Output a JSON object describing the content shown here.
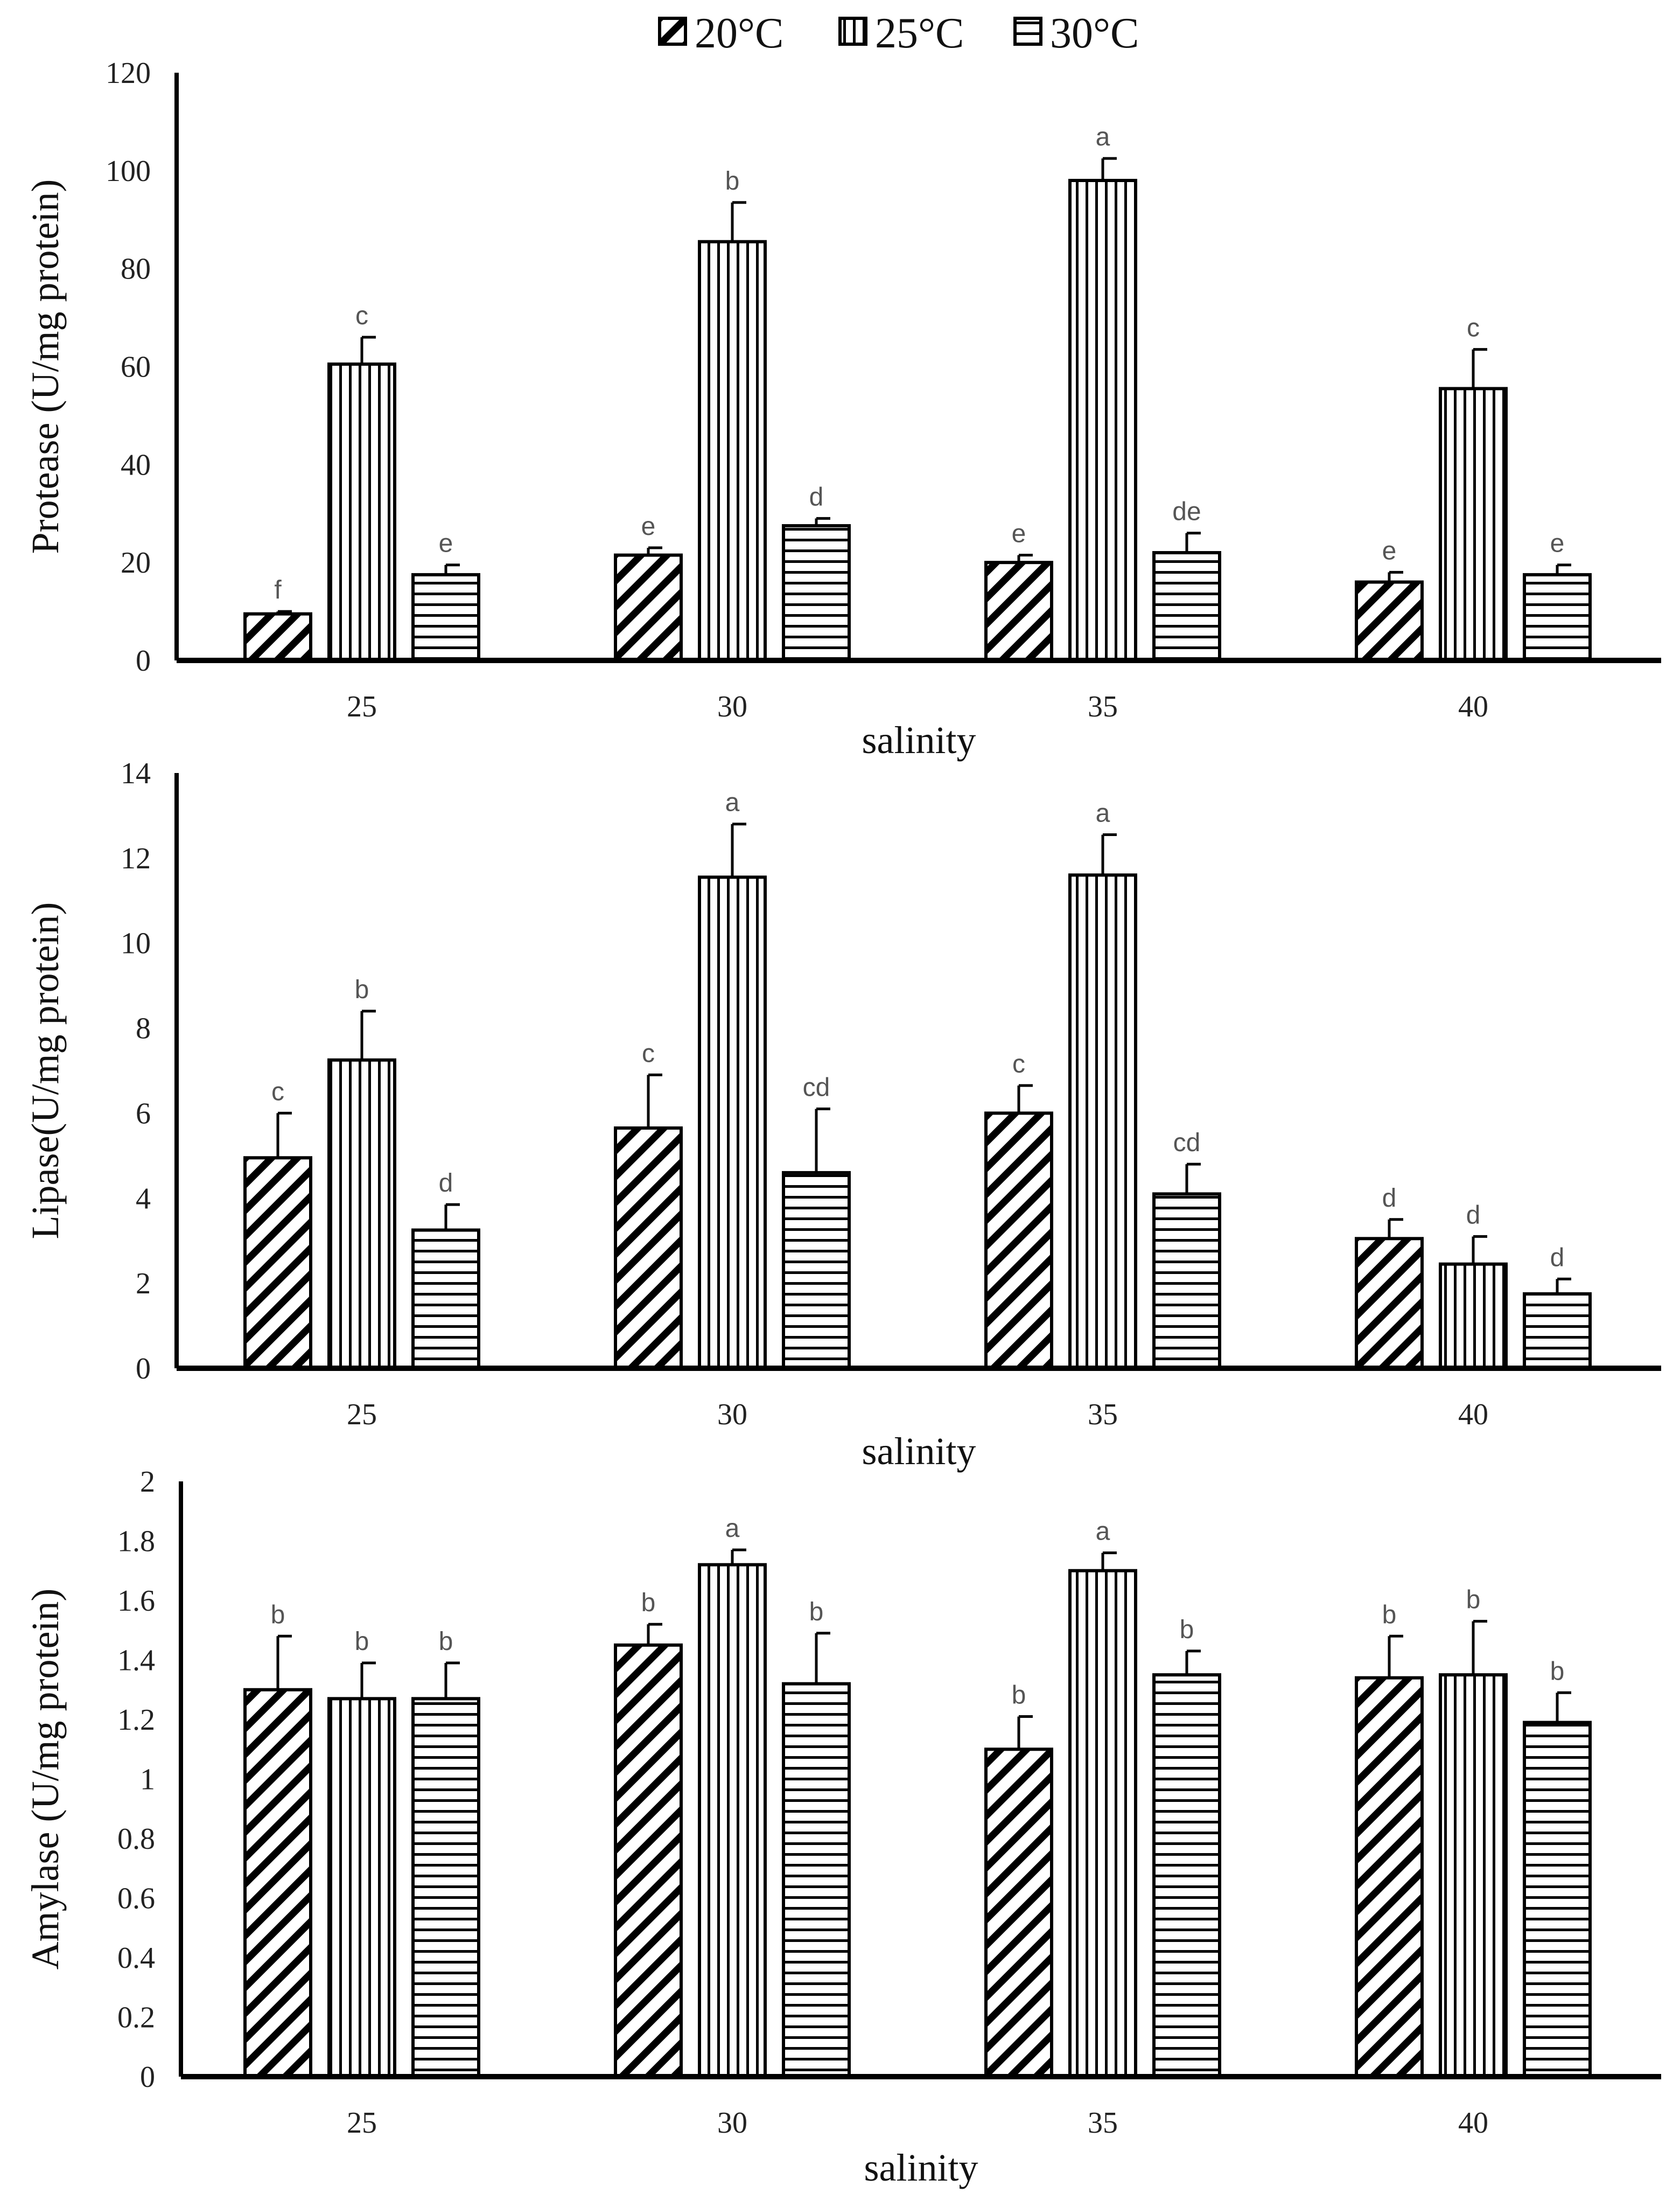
{
  "chart_data": [
    {
      "type": "bar",
      "title": "",
      "xlabel": "salinity",
      "ylabel": "Protease (U/mg protein)",
      "categories": [
        "25",
        "30",
        "35",
        "40"
      ],
      "ylim": [
        0,
        120
      ],
      "yticks": [
        "0",
        "20",
        "40",
        "60",
        "80",
        "100",
        "120"
      ],
      "ytick_values": [
        0,
        20,
        40,
        60,
        80,
        100,
        120
      ],
      "series": [
        {
          "name": "20°C",
          "values": [
            9.5,
            21.5,
            20,
            16
          ],
          "errors": [
            0.5,
            1.5,
            1.5,
            2
          ],
          "letters": [
            "f",
            "e",
            "e",
            "e"
          ]
        },
        {
          "name": "25°C",
          "values": [
            60.5,
            85.5,
            98,
            55.5
          ],
          "errors": [
            5.5,
            8,
            4.5,
            8
          ],
          "letters": [
            "c",
            "b",
            "a",
            "c"
          ]
        },
        {
          "name": "30°C",
          "values": [
            17.5,
            27.5,
            22,
            17.5
          ],
          "errors": [
            2,
            1.5,
            4,
            2
          ],
          "letters": [
            "e",
            "d",
            "de",
            "e"
          ]
        }
      ]
    },
    {
      "type": "bar",
      "title": "",
      "xlabel": "salinity",
      "ylabel": "Lipase(U/mg protein)",
      "categories": [
        "25",
        "30",
        "35",
        "40"
      ],
      "ylim": [
        0,
        14
      ],
      "yticks": [
        "0",
        "2",
        "4",
        "6",
        "8",
        "10",
        "12",
        "14"
      ],
      "ytick_values": [
        0,
        2,
        4,
        6,
        8,
        10,
        12,
        14
      ],
      "series": [
        {
          "name": "20°C",
          "values": [
            4.95,
            5.65,
            6.0,
            3.05
          ],
          "errors": [
            1.05,
            1.25,
            0.65,
            0.45
          ],
          "letters": [
            "c",
            "c",
            "c",
            "d"
          ]
        },
        {
          "name": "25°C",
          "values": [
            7.25,
            11.55,
            11.6,
            2.45
          ],
          "errors": [
            1.15,
            1.25,
            0.95,
            0.65
          ],
          "letters": [
            "b",
            "a",
            "a",
            "d"
          ]
        },
        {
          "name": "30°C",
          "values": [
            3.25,
            4.6,
            4.1,
            1.75
          ],
          "errors": [
            0.6,
            1.5,
            0.7,
            0.35
          ],
          "letters": [
            "d",
            "cd",
            "cd",
            "d"
          ]
        }
      ]
    },
    {
      "type": "bar",
      "title": "",
      "xlabel": "salinity",
      "ylabel": "Amylase (U/mg protein)",
      "categories": [
        "25",
        "30",
        "35",
        "40"
      ],
      "ylim": [
        0,
        2
      ],
      "yticks": [
        "0",
        "0.2",
        "0.4",
        "0.6",
        "0.8",
        "1",
        "1.2",
        "1.4",
        "1.6",
        "1.8",
        "2"
      ],
      "ytick_values": [
        0,
        0.2,
        0.4,
        0.6,
        0.8,
        1,
        1.2,
        1.4,
        1.6,
        1.8,
        2
      ],
      "series": [
        {
          "name": "20°C",
          "values": [
            1.3,
            1.45,
            1.1,
            1.34
          ],
          "errors": [
            0.18,
            0.07,
            0.11,
            0.14
          ],
          "letters": [
            "b",
            "b",
            "b",
            "b"
          ]
        },
        {
          "name": "25°C",
          "values": [
            1.27,
            1.72,
            1.7,
            1.35
          ],
          "errors": [
            0.12,
            0.05,
            0.06,
            0.18
          ],
          "letters": [
            "b",
            "a",
            "a",
            "b"
          ]
        },
        {
          "name": "30°C",
          "values": [
            1.27,
            1.32,
            1.35,
            1.19
          ],
          "errors": [
            0.12,
            0.17,
            0.08,
            0.1
          ],
          "letters": [
            "b",
            "b",
            "b",
            "b"
          ]
        }
      ]
    }
  ],
  "legend": [
    "20°C",
    "25°C",
    "30°C"
  ]
}
